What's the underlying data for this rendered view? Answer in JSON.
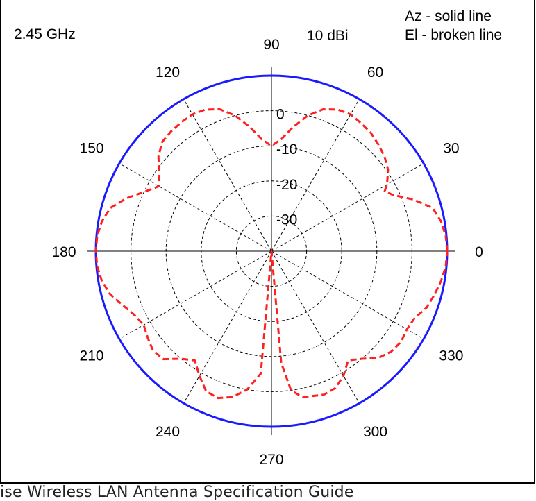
{
  "chart_data": {
    "type": "polar",
    "frequency_label": "2.45 GHz",
    "gain_label": "10 dBi",
    "legend": [
      "Az - solid line",
      "El - broken line"
    ],
    "angle_ticks": [
      {
        "angle": 0,
        "label": "0"
      },
      {
        "angle": 30,
        "label": "30"
      },
      {
        "angle": 60,
        "label": "60"
      },
      {
        "angle": 90,
        "label": "90"
      },
      {
        "angle": 120,
        "label": "120"
      },
      {
        "angle": 150,
        "label": "150"
      },
      {
        "angle": 180,
        "label": "180"
      },
      {
        "angle": 210,
        "label": "210"
      },
      {
        "angle": 240,
        "label": "240"
      },
      {
        "angle": 270,
        "label": "270"
      },
      {
        "angle": 300,
        "label": "300"
      },
      {
        "angle": 330,
        "label": "330"
      }
    ],
    "radial_range_db": [
      -40,
      10
    ],
    "radial_ticks": [
      {
        "value": 0,
        "label": "0"
      },
      {
        "value": -10,
        "label": "-10"
      },
      {
        "value": -20,
        "label": "-20"
      },
      {
        "value": -30,
        "label": "-30"
      }
    ],
    "gridline_values": [
      0,
      -10,
      -20,
      -30
    ],
    "series": [
      {
        "name": "Az",
        "style": "solid",
        "color": "#1a1aff",
        "points": [
          [
            0,
            10
          ],
          [
            90,
            10
          ],
          [
            180,
            10
          ],
          [
            270,
            10
          ],
          [
            360,
            10
          ]
        ]
      },
      {
        "name": "El",
        "style": "dashed",
        "color": "#ff2020",
        "points": [
          [
            0,
            10
          ],
          [
            5,
            9.8
          ],
          [
            10,
            9
          ],
          [
            15,
            7.5
          ],
          [
            20,
            3
          ],
          [
            25,
            -2
          ],
          [
            28,
            -3.5
          ],
          [
            30,
            -2
          ],
          [
            35,
            0.5
          ],
          [
            40,
            2
          ],
          [
            45,
            3
          ],
          [
            50,
            4
          ],
          [
            55,
            4.5
          ],
          [
            60,
            5
          ],
          [
            65,
            4.5
          ],
          [
            70,
            3
          ],
          [
            75,
            0
          ],
          [
            80,
            -4
          ],
          [
            85,
            -8
          ],
          [
            90,
            -10
          ],
          [
            95,
            -8
          ],
          [
            100,
            -4
          ],
          [
            105,
            0
          ],
          [
            110,
            3
          ],
          [
            115,
            4.5
          ],
          [
            120,
            5
          ],
          [
            125,
            4.8
          ],
          [
            130,
            4.5
          ],
          [
            135,
            4
          ],
          [
            140,
            2
          ],
          [
            145,
            -1
          ],
          [
            150,
            -3
          ],
          [
            155,
            0
          ],
          [
            160,
            4
          ],
          [
            165,
            7.5
          ],
          [
            170,
            9
          ],
          [
            175,
            9.8
          ],
          [
            180,
            10
          ],
          [
            185,
            9.8
          ],
          [
            190,
            9
          ],
          [
            195,
            7.5
          ],
          [
            200,
            5
          ],
          [
            205,
            3
          ],
          [
            210,
            2
          ],
          [
            215,
            3
          ],
          [
            220,
            4
          ],
          [
            225,
            3.5
          ],
          [
            230,
            0
          ],
          [
            235,
            -2
          ],
          [
            240,
            1
          ],
          [
            245,
            4
          ],
          [
            250,
            4.5
          ],
          [
            255,
            3
          ],
          [
            260,
            0
          ],
          [
            265,
            -5
          ],
          [
            270,
            -40
          ],
          [
            275,
            -8
          ],
          [
            278,
            0
          ],
          [
            282,
            2.5
          ],
          [
            290,
            3.5
          ],
          [
            295,
            3
          ],
          [
            300,
            1
          ],
          [
            305,
            -2
          ],
          [
            310,
            0
          ],
          [
            315,
            3
          ],
          [
            320,
            4.5
          ],
          [
            325,
            5
          ],
          [
            330,
            4.5
          ],
          [
            335,
            5
          ],
          [
            340,
            7
          ],
          [
            345,
            8
          ],
          [
            350,
            9
          ],
          [
            355,
            9.8
          ],
          [
            360,
            10
          ]
        ]
      }
    ]
  },
  "caption": "ise Wireless LAN Antenna Specification Guide"
}
